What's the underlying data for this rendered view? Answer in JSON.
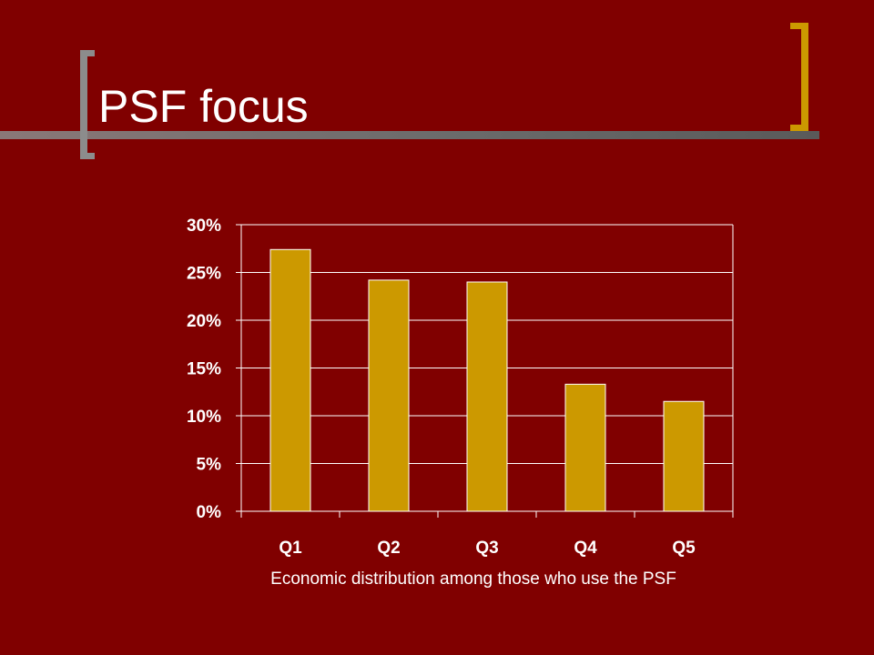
{
  "slide": {
    "title": "PSF focus",
    "caption": "Economic distribution among those who use the PSF"
  },
  "colors": {
    "background": "#800000",
    "bar_fill": "#cc9900",
    "bar_stroke": "#ffffff",
    "gridline": "#ffffff",
    "text": "#ffffff",
    "bracket_left": "#8c8c8c",
    "bracket_right": "#cc9900"
  },
  "chart_data": {
    "type": "bar",
    "categories": [
      "Q1",
      "Q2",
      "Q3",
      "Q4",
      "Q5"
    ],
    "values": [
      27.4,
      24.2,
      24.0,
      13.3,
      11.5
    ],
    "ylim": [
      0,
      30
    ],
    "yticks": [
      0,
      5,
      10,
      15,
      20,
      25,
      30
    ],
    "ytick_labels": [
      "0%",
      "5%",
      "10%",
      "15%",
      "20%",
      "25%",
      "30%"
    ],
    "title": "",
    "xlabel": "Economic distribution among those who use the PSF",
    "ylabel": "",
    "grid": true,
    "legend": "none"
  }
}
